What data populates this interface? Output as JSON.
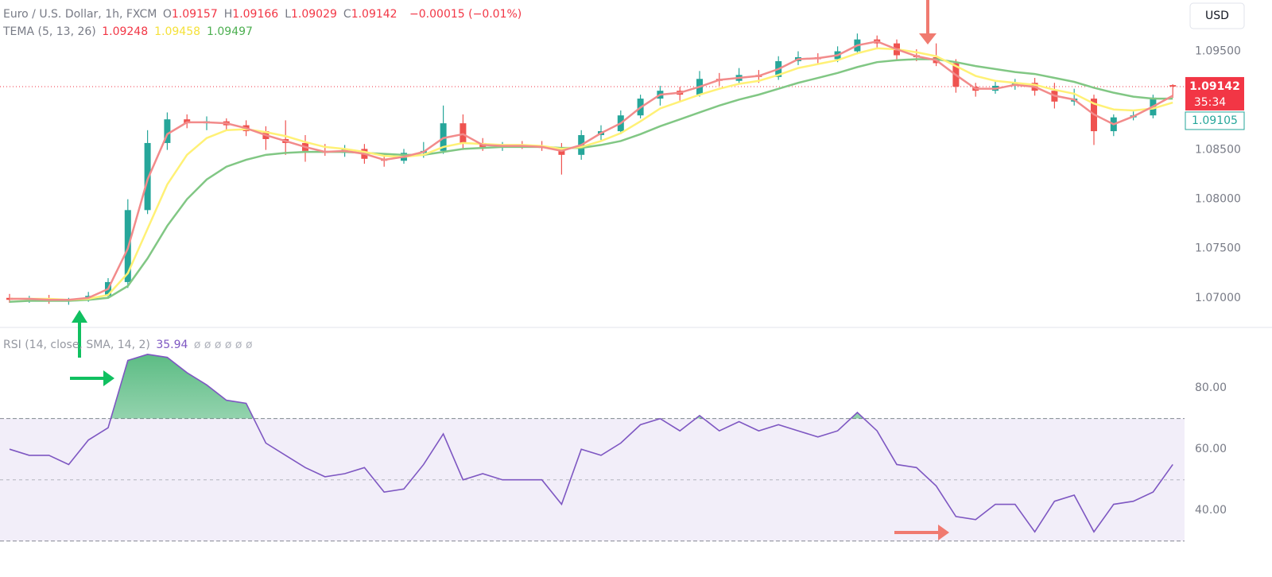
{
  "chart_data": [
    {
      "type": "candlestick",
      "title": "Euro / U.S. Dollar, 1h, FXCM",
      "ohlc_legend": [
        {
          "label": "O",
          "value": 1.09157
        },
        {
          "label": "H",
          "value": 1.09166
        },
        {
          "label": "L",
          "value": 1.09029
        },
        {
          "label": "C",
          "value": 1.09142
        }
      ],
      "change": "−0.00015 (−0.01%)",
      "indicator": "TEMA (5, 13, 26)",
      "up_color": "#26a69a",
      "down_color": "#ef5350",
      "open": [
        1.07,
        1.0698,
        1.0699,
        1.0697,
        1.0698,
        1.0702,
        1.0716,
        1.0789,
        1.0857,
        1.0881,
        1.0877,
        1.0879,
        1.0875,
        1.0869,
        1.0861,
        1.0857,
        1.0849,
        1.0847,
        1.0851,
        1.0841,
        1.0839,
        1.0847,
        1.0849,
        1.0877,
        1.0857,
        1.0853,
        1.0855,
        1.0854,
        1.0852,
        1.0845,
        1.0865,
        1.0869,
        1.0885,
        1.0902,
        1.091,
        1.0906,
        1.0922,
        1.092,
        1.0926,
        1.0924,
        1.094,
        1.0944,
        1.0942,
        1.095,
        1.0962,
        1.0958,
        1.0946,
        1.0944,
        1.0938,
        1.0914,
        1.091,
        1.0915,
        1.0918,
        1.091,
        1.0899,
        1.0902,
        1.0869,
        1.0883,
        1.0885,
        1.09157
      ],
      "high": [
        1.0704,
        1.0702,
        1.0703,
        1.07,
        1.0706,
        1.072,
        1.08,
        1.087,
        1.0888,
        1.0886,
        1.0884,
        1.0882,
        1.088,
        1.0874,
        1.088,
        1.0865,
        1.0856,
        1.0855,
        1.0856,
        1.0846,
        1.0851,
        1.0858,
        1.0895,
        1.0886,
        1.0862,
        1.0858,
        1.0859,
        1.0859,
        1.0857,
        1.087,
        1.0875,
        1.089,
        1.0906,
        1.0915,
        1.0914,
        1.093,
        1.0928,
        1.0933,
        1.0931,
        1.0945,
        1.095,
        1.0948,
        1.0955,
        1.0968,
        1.0966,
        1.0962,
        1.0952,
        1.0958,
        1.0942,
        1.0918,
        1.092,
        1.0922,
        1.0923,
        1.0918,
        1.0912,
        1.0906,
        1.0886,
        1.0889,
        1.0906,
        1.09166
      ],
      "low": [
        1.0695,
        1.0695,
        1.0694,
        1.0693,
        1.0696,
        1.07,
        1.071,
        1.0785,
        1.085,
        1.0872,
        1.087,
        1.087,
        1.0864,
        1.085,
        1.0845,
        1.0838,
        1.0844,
        1.0843,
        1.0836,
        1.0833,
        1.0836,
        1.0842,
        1.0846,
        1.085,
        1.0849,
        1.0849,
        1.0851,
        1.0849,
        1.0825,
        1.084,
        1.086,
        1.0866,
        1.0882,
        1.0895,
        1.09,
        1.0904,
        1.0915,
        1.0917,
        1.0918,
        1.0921,
        1.0936,
        1.0937,
        1.0939,
        1.0947,
        1.0952,
        1.0942,
        1.094,
        1.0935,
        1.0908,
        1.0904,
        1.0907,
        1.0911,
        1.0905,
        1.0892,
        1.0895,
        1.0855,
        1.0864,
        1.088,
        1.0882,
        1.09029
      ],
      "close": [
        1.0698,
        1.0699,
        1.0697,
        1.0698,
        1.0702,
        1.0716,
        1.0789,
        1.0857,
        1.0881,
        1.0877,
        1.0879,
        1.0875,
        1.0869,
        1.0861,
        1.0857,
        1.0849,
        1.0847,
        1.0851,
        1.0841,
        1.0839,
        1.0847,
        1.0849,
        1.0877,
        1.0857,
        1.0853,
        1.0855,
        1.0854,
        1.0852,
        1.0845,
        1.0865,
        1.0869,
        1.0885,
        1.0902,
        1.091,
        1.0906,
        1.0922,
        1.092,
        1.0926,
        1.0924,
        1.094,
        1.0944,
        1.0942,
        1.095,
        1.0962,
        1.0958,
        1.0946,
        1.0944,
        1.0938,
        1.0914,
        1.091,
        1.0915,
        1.0918,
        1.091,
        1.0899,
        1.0902,
        1.0869,
        1.0883,
        1.0885,
        1.0903,
        1.09142
      ],
      "series": [
        {
          "color": "#f28b8b",
          "legend_value": 1.09248,
          "legend_color": "#f23645",
          "values": [
            1.0699,
            1.0699,
            1.0698,
            1.0698,
            1.07,
            1.0709,
            1.075,
            1.082,
            1.0866,
            1.0878,
            1.0878,
            1.0877,
            1.0872,
            1.0865,
            1.0859,
            1.0853,
            1.0848,
            1.0849,
            1.0846,
            1.084,
            1.0843,
            1.0848,
            1.0862,
            1.0866,
            1.0855,
            1.0854,
            1.0854,
            1.0853,
            1.0849,
            1.0855,
            1.0867,
            1.0877,
            1.0893,
            1.0906,
            1.0908,
            1.0914,
            1.0921,
            1.0923,
            1.0925,
            1.0932,
            1.0942,
            1.0943,
            1.0946,
            1.0956,
            1.096,
            1.0952,
            1.0945,
            1.0941,
            1.0926,
            1.0912,
            1.0912,
            1.0916,
            1.0914,
            1.0905,
            1.0901,
            1.0886,
            1.0876,
            1.0884,
            1.0894,
            1.0905
          ]
        },
        {
          "color": "#fff176",
          "legend_value": 1.09458,
          "legend_color": "#f5e13a",
          "values": [
            1.0699,
            1.0699,
            1.0699,
            1.0698,
            1.0699,
            1.0703,
            1.0725,
            1.077,
            1.0815,
            1.0845,
            1.0862,
            1.087,
            1.0871,
            1.0868,
            1.0864,
            1.0858,
            1.0853,
            1.0851,
            1.0848,
            1.0844,
            1.0843,
            1.0845,
            1.0853,
            1.0857,
            1.0856,
            1.0855,
            1.0855,
            1.0854,
            1.0851,
            1.0853,
            1.0859,
            1.0867,
            1.0879,
            1.0892,
            1.0899,
            1.0906,
            1.0912,
            1.0917,
            1.092,
            1.0926,
            1.0933,
            1.0937,
            1.0941,
            1.0948,
            1.0953,
            1.0952,
            1.0949,
            1.0945,
            1.0935,
            1.0925,
            1.092,
            1.0918,
            1.0916,
            1.0911,
            1.0907,
            1.0897,
            1.0891,
            1.089,
            1.0892,
            1.0898
          ]
        },
        {
          "color": "#81c784",
          "legend_value": 1.09497,
          "legend_color": "#4caf50",
          "values": [
            1.0696,
            1.0697,
            1.0697,
            1.0697,
            1.0698,
            1.07,
            1.0712,
            1.074,
            1.0773,
            1.08,
            1.082,
            1.0833,
            1.084,
            1.0845,
            1.0847,
            1.0848,
            1.0848,
            1.0848,
            1.0847,
            1.0846,
            1.0845,
            1.0845,
            1.0848,
            1.0851,
            1.0852,
            1.0853,
            1.0853,
            1.0853,
            1.0852,
            1.0852,
            1.0855,
            1.0859,
            1.0866,
            1.0874,
            1.0881,
            1.0888,
            1.0895,
            1.0901,
            1.0906,
            1.0912,
            1.0918,
            1.0923,
            1.0928,
            1.0934,
            1.0939,
            1.0941,
            1.0942,
            1.0942,
            1.0939,
            1.0935,
            1.0932,
            1.0929,
            1.0927,
            1.0923,
            1.0919,
            1.0913,
            1.0908,
            1.0904,
            1.0902,
            1.0902
          ]
        }
      ],
      "ylim": [
        1.067,
        1.1002
      ],
      "yticks": [
        {
          "value": 1.07,
          "label": "1.07000"
        },
        {
          "value": 1.075,
          "label": "1.07500"
        },
        {
          "value": 1.08,
          "label": "1.08000"
        },
        {
          "value": 1.085,
          "label": "1.08500"
        },
        {
          "value": 1.095,
          "label": "1.09500"
        }
      ],
      "last_price": 1.09142,
      "countdown": "35:34",
      "prev_close": 1.09105,
      "currency": "USD"
    },
    {
      "type": "line",
      "title": "RSI (14, close, SMA, 14, 2)",
      "legend_value": 35.94,
      "placeholders": "ø ø ø ø ø ø",
      "color": "#7e57c2",
      "values": [
        60,
        58,
        58,
        55,
        63,
        67,
        89,
        91,
        90,
        85,
        81,
        76,
        75,
        62,
        58,
        54,
        51,
        52,
        54,
        46,
        47,
        55,
        65,
        50,
        52,
        50,
        50,
        50,
        42,
        60,
        58,
        62,
        68,
        70,
        66,
        71,
        66,
        69,
        66,
        68,
        66,
        64,
        66,
        72,
        66,
        55,
        54,
        48,
        38,
        37,
        42,
        42,
        33,
        43,
        45,
        33,
        42,
        43,
        46,
        55
      ],
      "ylim": [
        25,
        97.7
      ],
      "yticks": [
        {
          "value": 40,
          "label": "40.00"
        },
        {
          "value": 60,
          "label": "60.00"
        },
        {
          "value": 80,
          "label": "80.00"
        }
      ],
      "upper_band": 70,
      "middle_band": 50,
      "lower_band": 30,
      "overbought_fill": "#26a65b"
    }
  ]
}
